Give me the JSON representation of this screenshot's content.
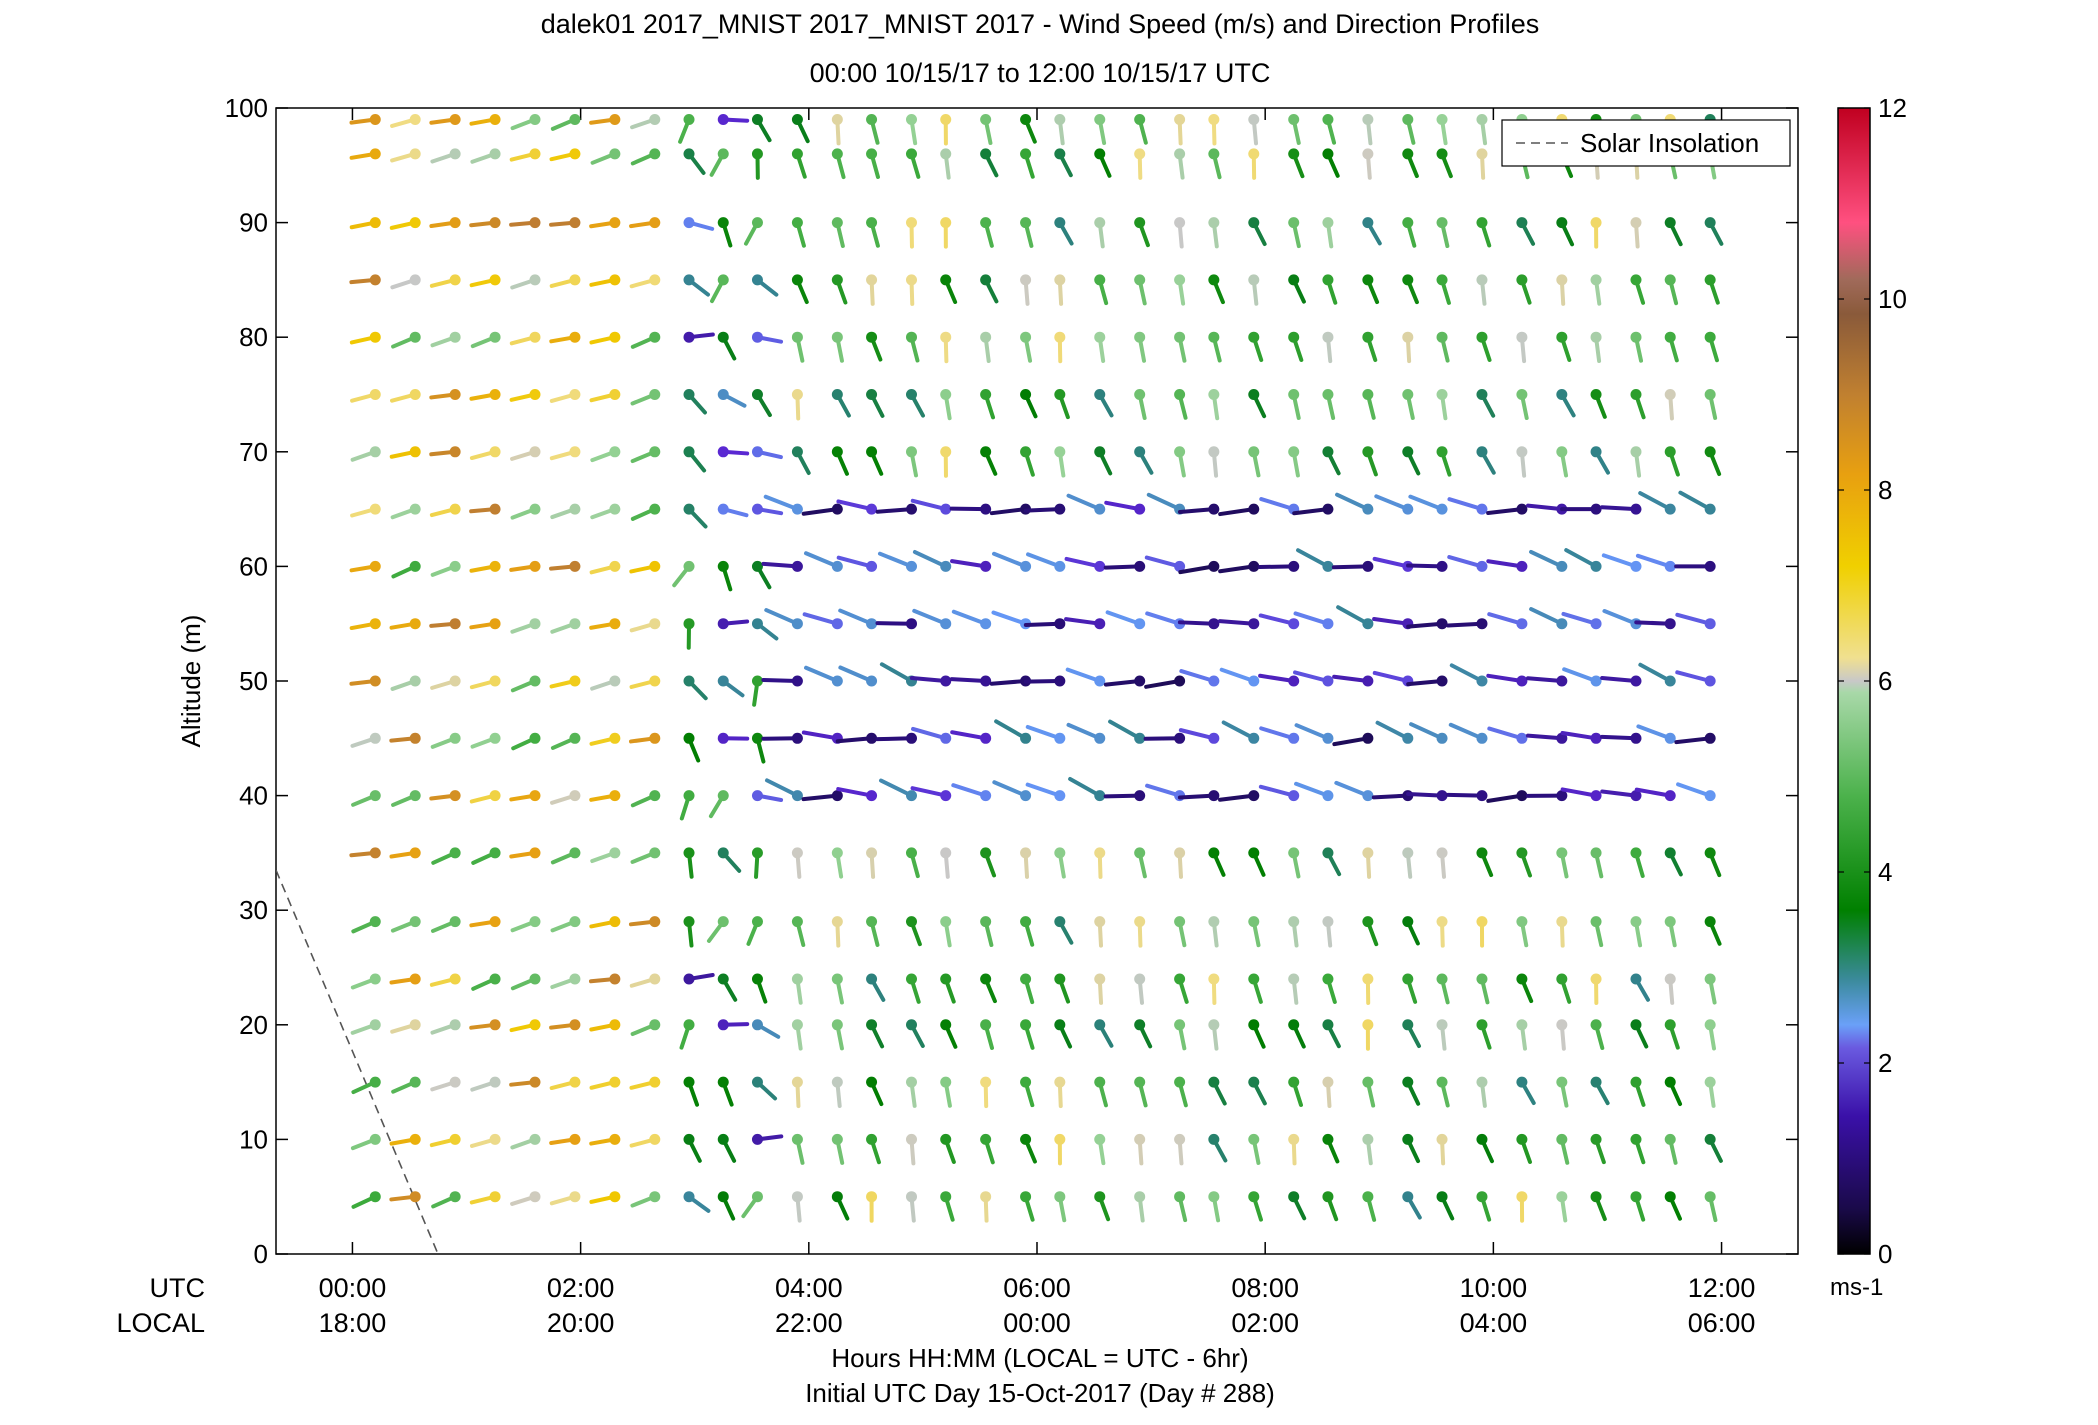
{
  "chart_data": {
    "type": "wind-barb-profile",
    "title_line1": "dalek01 2017_MNIST 2017_MNIST 2017 - Wind Speed (m/s) and Direction Profiles",
    "title_line2": "00:00 10/15/17 to 12:00 10/15/17  UTC",
    "ylabel": "Altitude (m)",
    "xlabel_line1": "Hours HH:MM  (LOCAL = UTC - 6hr)",
    "xlabel_line2": "Initial UTC Day 15-Oct-2017 (Day # 288)",
    "utc_row_label": "UTC",
    "local_row_label": "LOCAL",
    "ylim": [
      0,
      100
    ],
    "yticks": [
      0,
      10,
      20,
      30,
      40,
      50,
      60,
      70,
      80,
      90,
      100
    ],
    "xlim_hours": [
      -0.67,
      12.67
    ],
    "xticks_hours": [
      0,
      2,
      4,
      6,
      8,
      10,
      12
    ],
    "xtick_labels_utc": [
      "00:00",
      "02:00",
      "04:00",
      "06:00",
      "08:00",
      "10:00",
      "12:00"
    ],
    "xtick_labels_local": [
      "18:00",
      "20:00",
      "22:00",
      "00:00",
      "02:00",
      "04:00",
      "06:00"
    ],
    "legend": {
      "label": "Solar Insolation",
      "location": "top-right",
      "style": "dashed"
    },
    "colorbar": {
      "range": [
        0,
        12
      ],
      "ticks": [
        0,
        2,
        4,
        6,
        8,
        10,
        12
      ],
      "unit": "ms-1"
    },
    "solar_insolation_line": [
      [
        -0.67,
        33.5
      ],
      [
        0.75,
        0
      ]
    ],
    "time_hours": [
      0.2,
      0.55,
      0.9,
      1.25,
      1.6,
      1.95,
      2.3,
      2.65,
      2.95,
      3.25,
      3.55,
      3.9,
      4.25,
      4.55,
      4.9,
      5.2,
      5.55,
      5.9,
      6.2,
      6.55,
      6.9,
      7.25,
      7.55,
      7.9,
      8.25,
      8.55,
      8.9,
      9.25,
      9.55,
      9.9,
      10.25,
      10.6,
      10.9,
      11.25,
      11.55,
      11.9
    ],
    "altitudes_m": [
      5,
      10,
      15,
      20,
      24,
      29,
      35,
      40,
      45,
      50,
      55,
      60,
      65,
      70,
      75,
      80,
      85,
      90,
      96,
      99
    ],
    "regime_note_values": {
      "early_period_direction_deg": 260,
      "early_period_speed_ms": [
        5,
        8
      ],
      "transition_time_hours": 2.9,
      "low_level_direction_after_transition_deg": 160,
      "low_level_speed_ms": [
        3,
        6
      ],
      "jet_layer_altitudes_m": [
        40,
        65
      ],
      "jet_layer_direction_deg": 280,
      "jet_layer_speed_ms": [
        0.5,
        2.5
      ]
    }
  }
}
